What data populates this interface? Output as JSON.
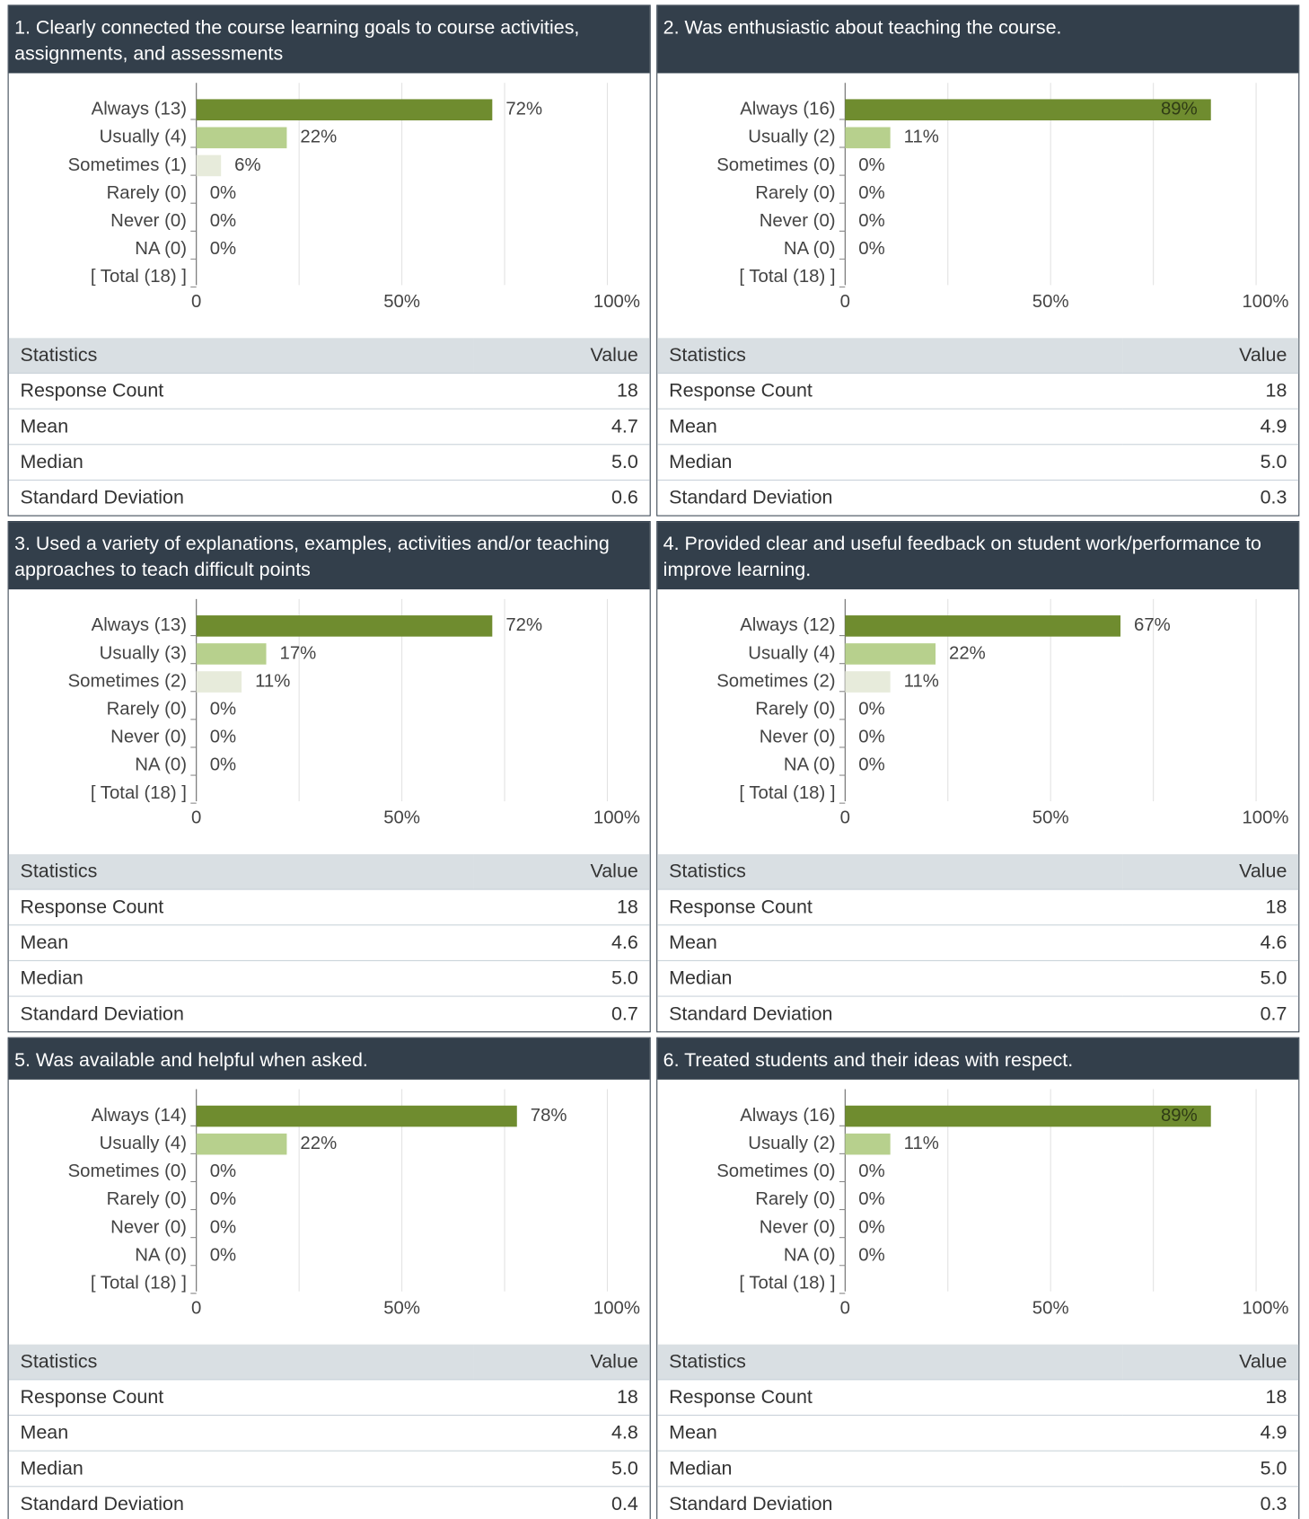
{
  "chart_data": [
    {
      "type": "bar",
      "orientation": "horizontal",
      "title": "1. Clearly connected the course learning goals to course activities, assignments, and assessments",
      "categories": [
        "Always (13)",
        "Usually (4)",
        "Sometimes (1)",
        "Rarely (0)",
        "Never (0)",
        "NA (0)",
        "[ Total (18) ]"
      ],
      "values": [
        72,
        22,
        6,
        0,
        0,
        0,
        null
      ],
      "value_labels": [
        "72%",
        "22%",
        "6%",
        "0%",
        "0%",
        "0%",
        null
      ],
      "colors": [
        "#6f8c2f",
        "#b7d08d",
        "#e7ebdb",
        "#e7ebdb",
        "#e7ebdb",
        "#e7ebdb",
        null
      ],
      "xlim": [
        0,
        100
      ],
      "xticks": [
        0,
        {
          "value": 50,
          "label": "50%"
        },
        {
          "value": 100,
          "label": "100%"
        }
      ],
      "minor_xticks": [
        25,
        75
      ],
      "grid": true,
      "statistics": {
        "columns": [
          "Statistics",
          "Value"
        ],
        "rows": [
          [
            "Response Count",
            "18"
          ],
          [
            "Mean",
            "4.7"
          ],
          [
            "Median",
            "5.0"
          ],
          [
            "Standard Deviation",
            "0.6"
          ]
        ]
      }
    },
    {
      "type": "bar",
      "orientation": "horizontal",
      "title": "2. Was enthusiastic about teaching the course.",
      "categories": [
        "Always (16)",
        "Usually (2)",
        "Sometimes (0)",
        "Rarely (0)",
        "Never (0)",
        "NA (0)",
        "[ Total (18) ]"
      ],
      "values": [
        89,
        11,
        0,
        0,
        0,
        0,
        null
      ],
      "value_labels": [
        "89%",
        "11%",
        "0%",
        "0%",
        "0%",
        "0%",
        null
      ],
      "colors": [
        "#6f8c2f",
        "#b7d08d",
        "#e7ebdb",
        "#e7ebdb",
        "#e7ebdb",
        "#e7ebdb",
        null
      ],
      "xlim": [
        0,
        100
      ],
      "xticks": [
        0,
        {
          "value": 50,
          "label": "50%"
        },
        {
          "value": 100,
          "label": "100%"
        }
      ],
      "minor_xticks": [
        25,
        75
      ],
      "grid": true,
      "statistics": {
        "columns": [
          "Statistics",
          "Value"
        ],
        "rows": [
          [
            "Response Count",
            "18"
          ],
          [
            "Mean",
            "4.9"
          ],
          [
            "Median",
            "5.0"
          ],
          [
            "Standard Deviation",
            "0.3"
          ]
        ]
      }
    },
    {
      "type": "bar",
      "orientation": "horizontal",
      "title": "3. Used a variety of explanations, examples, activities and/or teaching approaches to teach difficult points",
      "categories": [
        "Always (13)",
        "Usually (3)",
        "Sometimes (2)",
        "Rarely (0)",
        "Never (0)",
        "NA (0)",
        "[ Total (18) ]"
      ],
      "values": [
        72,
        17,
        11,
        0,
        0,
        0,
        null
      ],
      "value_labels": [
        "72%",
        "17%",
        "11%",
        "0%",
        "0%",
        "0%",
        null
      ],
      "colors": [
        "#6f8c2f",
        "#b7d08d",
        "#e7ebdb",
        "#e7ebdb",
        "#e7ebdb",
        "#e7ebdb",
        null
      ],
      "xlim": [
        0,
        100
      ],
      "xticks": [
        0,
        {
          "value": 50,
          "label": "50%"
        },
        {
          "value": 100,
          "label": "100%"
        }
      ],
      "minor_xticks": [
        25,
        75
      ],
      "grid": true,
      "statistics": {
        "columns": [
          "Statistics",
          "Value"
        ],
        "rows": [
          [
            "Response Count",
            "18"
          ],
          [
            "Mean",
            "4.6"
          ],
          [
            "Median",
            "5.0"
          ],
          [
            "Standard Deviation",
            "0.7"
          ]
        ]
      }
    },
    {
      "type": "bar",
      "orientation": "horizontal",
      "title": "4. Provided clear and useful feedback on student work/performance to improve learning.",
      "categories": [
        "Always (12)",
        "Usually (4)",
        "Sometimes (2)",
        "Rarely (0)",
        "Never (0)",
        "NA (0)",
        "[ Total (18) ]"
      ],
      "values": [
        67,
        22,
        11,
        0,
        0,
        0,
        null
      ],
      "value_labels": [
        "67%",
        "22%",
        "11%",
        "0%",
        "0%",
        "0%",
        null
      ],
      "colors": [
        "#6f8c2f",
        "#b7d08d",
        "#e7ebdb",
        "#e7ebdb",
        "#e7ebdb",
        "#e7ebdb",
        null
      ],
      "xlim": [
        0,
        100
      ],
      "xticks": [
        0,
        {
          "value": 50,
          "label": "50%"
        },
        {
          "value": 100,
          "label": "100%"
        }
      ],
      "minor_xticks": [
        25,
        75
      ],
      "grid": true,
      "statistics": {
        "columns": [
          "Statistics",
          "Value"
        ],
        "rows": [
          [
            "Response Count",
            "18"
          ],
          [
            "Mean",
            "4.6"
          ],
          [
            "Median",
            "5.0"
          ],
          [
            "Standard Deviation",
            "0.7"
          ]
        ]
      }
    },
    {
      "type": "bar",
      "orientation": "horizontal",
      "title": "5. Was available and helpful when asked.",
      "categories": [
        "Always (14)",
        "Usually (4)",
        "Sometimes (0)",
        "Rarely (0)",
        "Never (0)",
        "NA (0)",
        "[ Total (18) ]"
      ],
      "values": [
        78,
        22,
        0,
        0,
        0,
        0,
        null
      ],
      "value_labels": [
        "78%",
        "22%",
        "0%",
        "0%",
        "0%",
        "0%",
        null
      ],
      "colors": [
        "#6f8c2f",
        "#b7d08d",
        "#e7ebdb",
        "#e7ebdb",
        "#e7ebdb",
        "#e7ebdb",
        null
      ],
      "xlim": [
        0,
        100
      ],
      "xticks": [
        0,
        {
          "value": 50,
          "label": "50%"
        },
        {
          "value": 100,
          "label": "100%"
        }
      ],
      "minor_xticks": [
        25,
        75
      ],
      "grid": true,
      "statistics": {
        "columns": [
          "Statistics",
          "Value"
        ],
        "rows": [
          [
            "Response Count",
            "18"
          ],
          [
            "Mean",
            "4.8"
          ],
          [
            "Median",
            "5.0"
          ],
          [
            "Standard Deviation",
            "0.4"
          ]
        ]
      }
    },
    {
      "type": "bar",
      "orientation": "horizontal",
      "title": "6. Treated students and their ideas with respect.",
      "categories": [
        "Always (16)",
        "Usually (2)",
        "Sometimes (0)",
        "Rarely (0)",
        "Never (0)",
        "NA (0)",
        "[ Total (18) ]"
      ],
      "values": [
        89,
        11,
        0,
        0,
        0,
        0,
        null
      ],
      "value_labels": [
        "89%",
        "11%",
        "0%",
        "0%",
        "0%",
        "0%",
        null
      ],
      "colors": [
        "#6f8c2f",
        "#b7d08d",
        "#e7ebdb",
        "#e7ebdb",
        "#e7ebdb",
        "#e7ebdb",
        null
      ],
      "xlim": [
        0,
        100
      ],
      "xticks": [
        0,
        {
          "value": 50,
          "label": "50%"
        },
        {
          "value": 100,
          "label": "100%"
        }
      ],
      "minor_xticks": [
        25,
        75
      ],
      "grid": true,
      "statistics": {
        "columns": [
          "Statistics",
          "Value"
        ],
        "rows": [
          [
            "Response Count",
            "18"
          ],
          [
            "Mean",
            "4.9"
          ],
          [
            "Median",
            "5.0"
          ],
          [
            "Standard Deviation",
            "0.3"
          ]
        ]
      }
    }
  ]
}
